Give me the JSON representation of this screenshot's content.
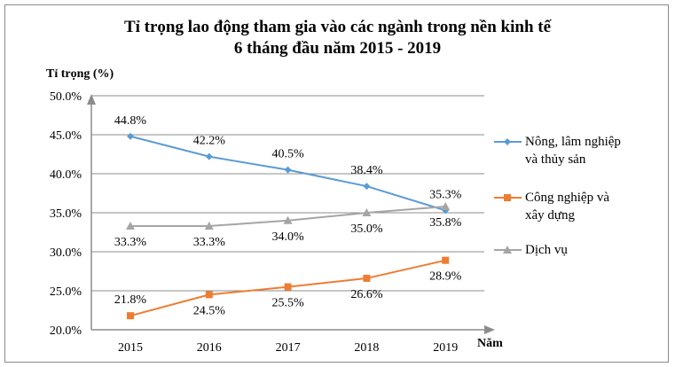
{
  "chart_data": {
    "type": "line",
    "title": [
      "Tỉ trọng lao động tham gia vào các ngành trong nền kinh tế",
      "6 tháng đầu năm 2015 - 2019"
    ],
    "ylabel": "Tỉ trọng (%)",
    "xlabel": "Năm",
    "categories": [
      "2015",
      "2016",
      "2017",
      "2018",
      "2019"
    ],
    "ylim": [
      20,
      50
    ],
    "yticks": [
      "20.0%",
      "25.0%",
      "30.0%",
      "35.0%",
      "40.0%",
      "45.0%",
      "50.0%"
    ],
    "grid": true,
    "legend_position": "right",
    "series": [
      {
        "name": "Nông, lâm nghiệp và thủy sản",
        "legend_lines": [
          "Nông, lâm nghiệp",
          "và thủy sản"
        ],
        "color": "#5b9bd5",
        "marker": "diamond",
        "values": [
          44.8,
          42.2,
          40.5,
          38.4,
          35.3
        ],
        "labels": [
          "44.8%",
          "42.2%",
          "40.5%",
          "38.4%",
          "35.3%"
        ]
      },
      {
        "name": "Công nghiệp và xây dựng",
        "legend_lines": [
          "Công nghiệp và",
          "xây dựng"
        ],
        "color": "#ed7d31",
        "marker": "square",
        "values": [
          21.8,
          24.5,
          25.5,
          26.6,
          28.9
        ],
        "labels": [
          "21.8%",
          "24.5%",
          "25.5%",
          "26.6%",
          "28.9%"
        ]
      },
      {
        "name": "Dịch vụ",
        "legend_lines": [
          "Dịch vụ"
        ],
        "color": "#a5a5a5",
        "marker": "triangle",
        "values": [
          33.3,
          33.3,
          34.0,
          35.0,
          35.8
        ],
        "labels": [
          "33.3%",
          "33.3%",
          "34.0%",
          "35.0%",
          "35.8%"
        ]
      }
    ]
  }
}
